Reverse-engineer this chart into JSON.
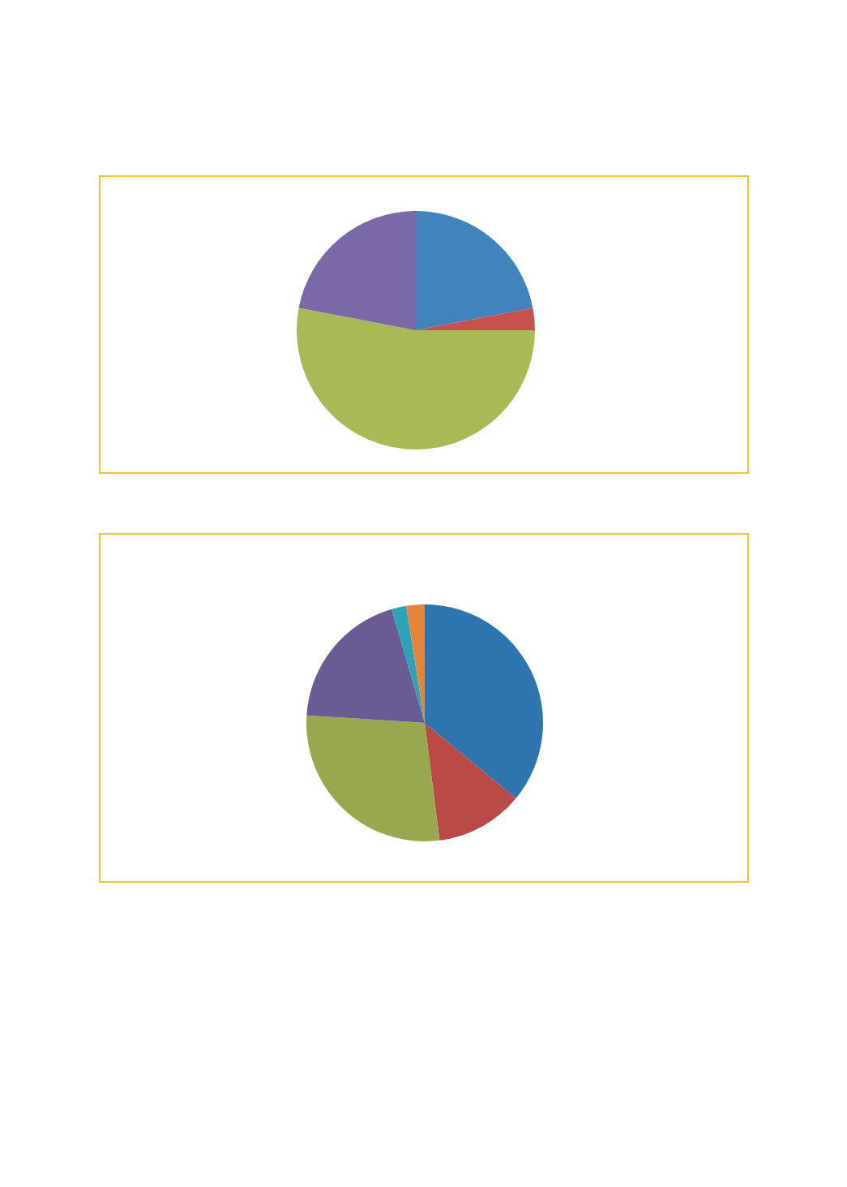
{
  "chart_data": [
    {
      "type": "pie",
      "categories": [
        null,
        null,
        null,
        null
      ],
      "values": [
        22,
        3,
        53,
        22
      ],
      "colors": [
        "#4083bd",
        "#c8504d",
        "#a9b956",
        "#7b68a6"
      ]
    },
    {
      "type": "pie",
      "categories": [
        null,
        null,
        null,
        null,
        null,
        null
      ],
      "values": [
        36,
        12,
        28,
        19.5,
        2,
        2.5
      ],
      "colors": [
        "#2e75b0",
        "#b94a45",
        "#99a84e",
        "#6a5b94",
        "#2ea3b7",
        "#e5853c"
      ]
    }
  ]
}
